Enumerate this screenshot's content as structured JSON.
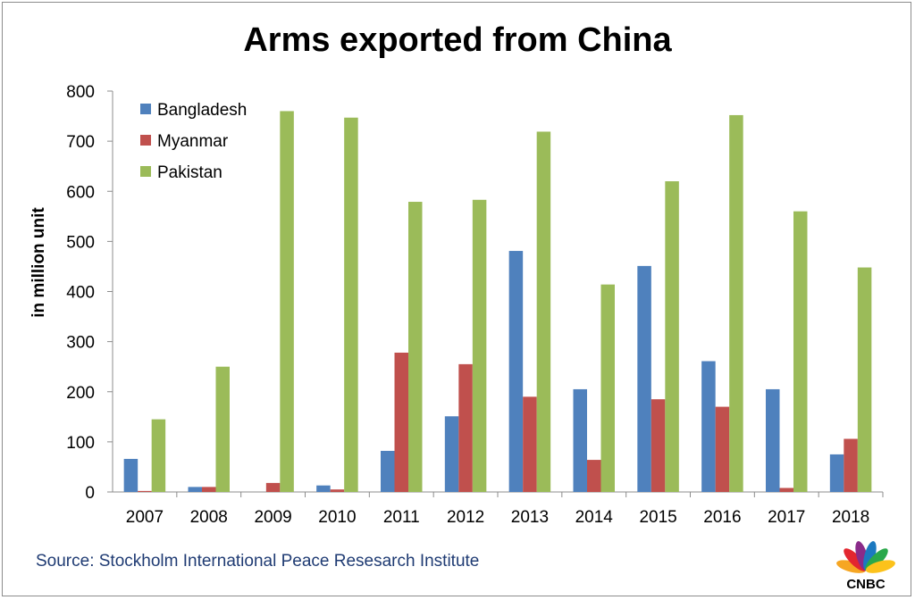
{
  "source_text": "Source: Stockholm International Peace Resesarch Institute",
  "logo": {
    "text": "CNBC",
    "icon": "cnbc-peacock-icon",
    "colors": [
      "#f6a623",
      "#e3262f",
      "#8a2b89",
      "#1c79c0",
      "#2aa84a",
      "#fcc21b"
    ]
  },
  "colors": {
    "Bangladesh": "#4f81bd",
    "Myanmar": "#c0504d",
    "Pakistan": "#9bbb59",
    "axis": "#8c8c8c",
    "source": "#1f3b73"
  },
  "chart_data": {
    "type": "bar",
    "title": "Arms exported from China",
    "xlabel": "",
    "ylabel": "in million unit",
    "ylim": [
      0,
      800
    ],
    "yticks": [
      0,
      100,
      200,
      300,
      400,
      500,
      600,
      700,
      800
    ],
    "grid": false,
    "legend_position": "top-left",
    "categories": [
      "2007",
      "2008",
      "2009",
      "2010",
      "2011",
      "2012",
      "2013",
      "2014",
      "2015",
      "2016",
      "2017",
      "2018"
    ],
    "series": [
      {
        "name": "Bangladesh",
        "values": [
          66,
          10,
          0,
          13,
          82,
          151,
          481,
          205,
          451,
          261,
          205,
          75
        ]
      },
      {
        "name": "Myanmar",
        "values": [
          2,
          10,
          18,
          5,
          278,
          255,
          190,
          64,
          185,
          170,
          8,
          106
        ]
      },
      {
        "name": "Pakistan",
        "values": [
          145,
          250,
          760,
          747,
          579,
          583,
          719,
          414,
          620,
          752,
          560,
          448
        ]
      }
    ]
  }
}
